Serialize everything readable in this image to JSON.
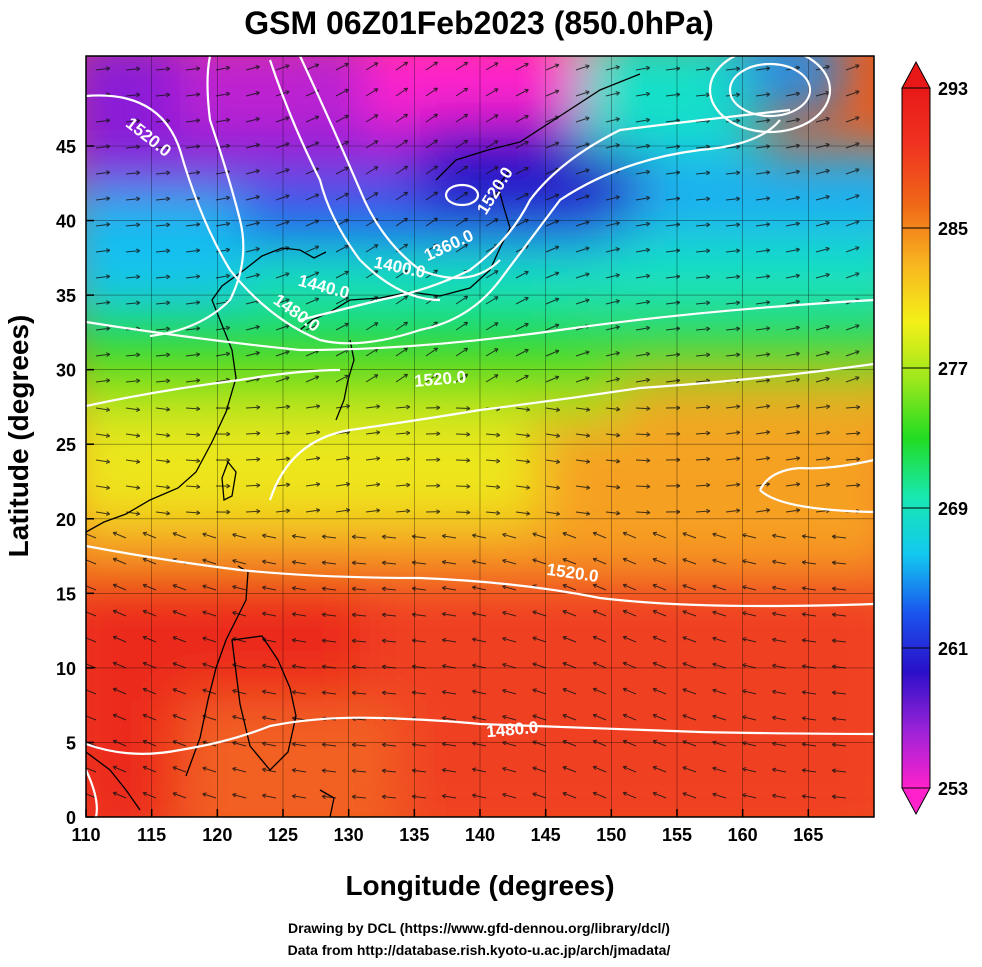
{
  "chart_data": {
    "type": "heatmap",
    "title": "GSM 06Z01Feb2023 (850.0hPa)",
    "xlabel": "Longitude (degrees)",
    "ylabel": "Latitude  (degrees)",
    "xlim": [
      110,
      170
    ],
    "ylim": [
      0,
      50
    ],
    "x_ticks": [
      110,
      115,
      120,
      125,
      130,
      135,
      140,
      145,
      150,
      155,
      160,
      165
    ],
    "y_ticks": [
      0,
      5,
      10,
      15,
      20,
      25,
      30,
      35,
      40,
      45
    ],
    "colorbar": {
      "min": 253,
      "max": 293,
      "ticks": [
        253,
        261,
        269,
        277,
        285,
        293
      ],
      "colors": [
        "#ff22cc",
        "#9a22d8",
        "#2a10c8",
        "#1a55ee",
        "#13c8f0",
        "#18e8b0",
        "#22dc22",
        "#9ce81c",
        "#f4f018",
        "#f8b420",
        "#f06818",
        "#f03420",
        "#e81818"
      ]
    },
    "contour_labels": [
      {
        "text": "1520.0",
        "lon": 114.5,
        "lat": 45.3,
        "angle": 38
      },
      {
        "text": "1520.0",
        "lon": 141.5,
        "lat": 41.8,
        "angle": -58
      },
      {
        "text": "1360.0",
        "lon": 137.8,
        "lat": 38.0,
        "angle": -25
      },
      {
        "text": "1400.0",
        "lon": 133.8,
        "lat": 36.5,
        "angle": 12
      },
      {
        "text": "1440.0",
        "lon": 128.0,
        "lat": 35.2,
        "angle": 15
      },
      {
        "text": "1480.0",
        "lon": 125.8,
        "lat": 33.5,
        "angle": 35
      },
      {
        "text": "1520.0",
        "lon": 137.0,
        "lat": 29.0,
        "angle": -5
      },
      {
        "text": "1520.0",
        "lon": 147.0,
        "lat": 16.0,
        "angle": 8
      },
      {
        "text": "1480.0",
        "lon": 142.5,
        "lat": 5.5,
        "angle": -5
      }
    ]
  },
  "credits": {
    "line1": "Drawing by DCL (https://www.gfd-dennou.org/library/dcl/)",
    "line2": "Data from http://database.rish.kyoto-u.ac.jp/arch/jmadata/"
  }
}
